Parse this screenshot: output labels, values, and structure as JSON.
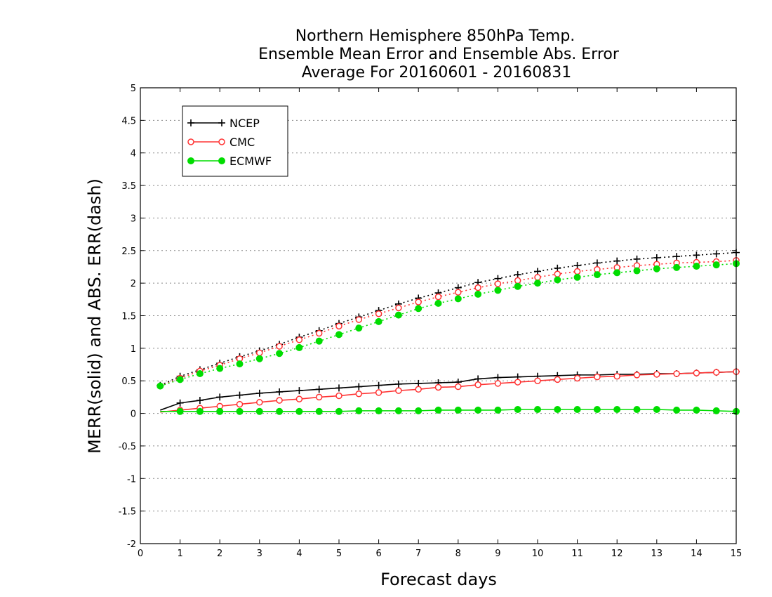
{
  "chart_data": {
    "type": "line",
    "title": [
      "Northern Hemisphere 850hPa Temp.",
      "Ensemble Mean Error and Ensemble Abs. Error",
      "Average For 20160601 - 20160831"
    ],
    "xlabel": "Forecast days",
    "ylabel": "MERR(solid) and ABS. ERR(dash)",
    "xlim": [
      0,
      15
    ],
    "ylim": [
      -2,
      5
    ],
    "xticks": [
      0,
      1,
      2,
      3,
      4,
      5,
      6,
      7,
      8,
      9,
      10,
      11,
      12,
      13,
      14,
      15
    ],
    "yticks": [
      -2,
      -1.5,
      -1,
      -0.5,
      0,
      0.5,
      1,
      1.5,
      2,
      2.5,
      3,
      3.5,
      4,
      4.5,
      5
    ],
    "ytick_labels": [
      "-2",
      "-1.5",
      "-1",
      "-0.5",
      "0",
      "0.5",
      "1",
      "1.5",
      "2",
      "2.5",
      "3",
      "3.5",
      "4",
      "4.5",
      "5"
    ],
    "grid": "horizontal-dotted",
    "legend_position": "top-left",
    "x": [
      0.5,
      1,
      1.5,
      2,
      2.5,
      3,
      3.5,
      4,
      4.5,
      5,
      5.5,
      6,
      6.5,
      7,
      7.5,
      8,
      8.5,
      9,
      9.5,
      10,
      10.5,
      11,
      11.5,
      12,
      12.5,
      13,
      13.5,
      14,
      14.5,
      15
    ],
    "series": [
      {
        "name": "NCEP",
        "color": "#000000",
        "marker": "plus",
        "merr": [
          0.05,
          0.16,
          0.2,
          0.25,
          0.28,
          0.31,
          0.33,
          0.35,
          0.37,
          0.39,
          0.41,
          0.43,
          0.45,
          0.46,
          0.47,
          0.48,
          0.53,
          0.55,
          0.56,
          0.57,
          0.58,
          0.59,
          0.59,
          0.6,
          0.6,
          0.61,
          0.61,
          0.62,
          0.63,
          0.64
        ],
        "abs_err": [
          0.43,
          0.57,
          0.67,
          0.77,
          0.87,
          0.96,
          1.06,
          1.17,
          1.27,
          1.38,
          1.48,
          1.58,
          1.68,
          1.77,
          1.85,
          1.93,
          2.01,
          2.07,
          2.13,
          2.18,
          2.23,
          2.27,
          2.31,
          2.34,
          2.37,
          2.39,
          2.41,
          2.43,
          2.45,
          2.47
        ]
      },
      {
        "name": "CMC",
        "color": "#ff3333",
        "marker": "open-circle",
        "merr": [
          0.02,
          0.05,
          0.08,
          0.11,
          0.14,
          0.17,
          0.2,
          0.22,
          0.25,
          0.27,
          0.3,
          0.32,
          0.35,
          0.37,
          0.4,
          0.41,
          0.44,
          0.46,
          0.48,
          0.5,
          0.52,
          0.54,
          0.56,
          0.57,
          0.59,
          0.6,
          0.61,
          0.62,
          0.63,
          0.64
        ],
        "abs_err": [
          0.42,
          0.54,
          0.65,
          0.74,
          0.84,
          0.93,
          1.03,
          1.13,
          1.23,
          1.34,
          1.44,
          1.53,
          1.62,
          1.71,
          1.79,
          1.86,
          1.93,
          1.99,
          2.04,
          2.09,
          2.14,
          2.18,
          2.21,
          2.24,
          2.27,
          2.29,
          2.31,
          2.32,
          2.33,
          2.35
        ]
      },
      {
        "name": "ECMWF",
        "color": "#00dd00",
        "marker": "filled-circle",
        "merr": [
          0.03,
          0.03,
          0.03,
          0.03,
          0.03,
          0.03,
          0.03,
          0.03,
          0.03,
          0.03,
          0.04,
          0.04,
          0.04,
          0.04,
          0.05,
          0.05,
          0.05,
          0.05,
          0.06,
          0.06,
          0.06,
          0.06,
          0.06,
          0.06,
          0.06,
          0.06,
          0.05,
          0.05,
          0.04,
          0.03
        ],
        "abs_err": [
          0.42,
          0.52,
          0.61,
          0.69,
          0.76,
          0.84,
          0.92,
          1.01,
          1.11,
          1.21,
          1.31,
          1.41,
          1.51,
          1.61,
          1.69,
          1.76,
          1.83,
          1.89,
          1.95,
          2.0,
          2.05,
          2.09,
          2.13,
          2.16,
          2.19,
          2.22,
          2.24,
          2.26,
          2.28,
          2.3
        ]
      }
    ]
  }
}
